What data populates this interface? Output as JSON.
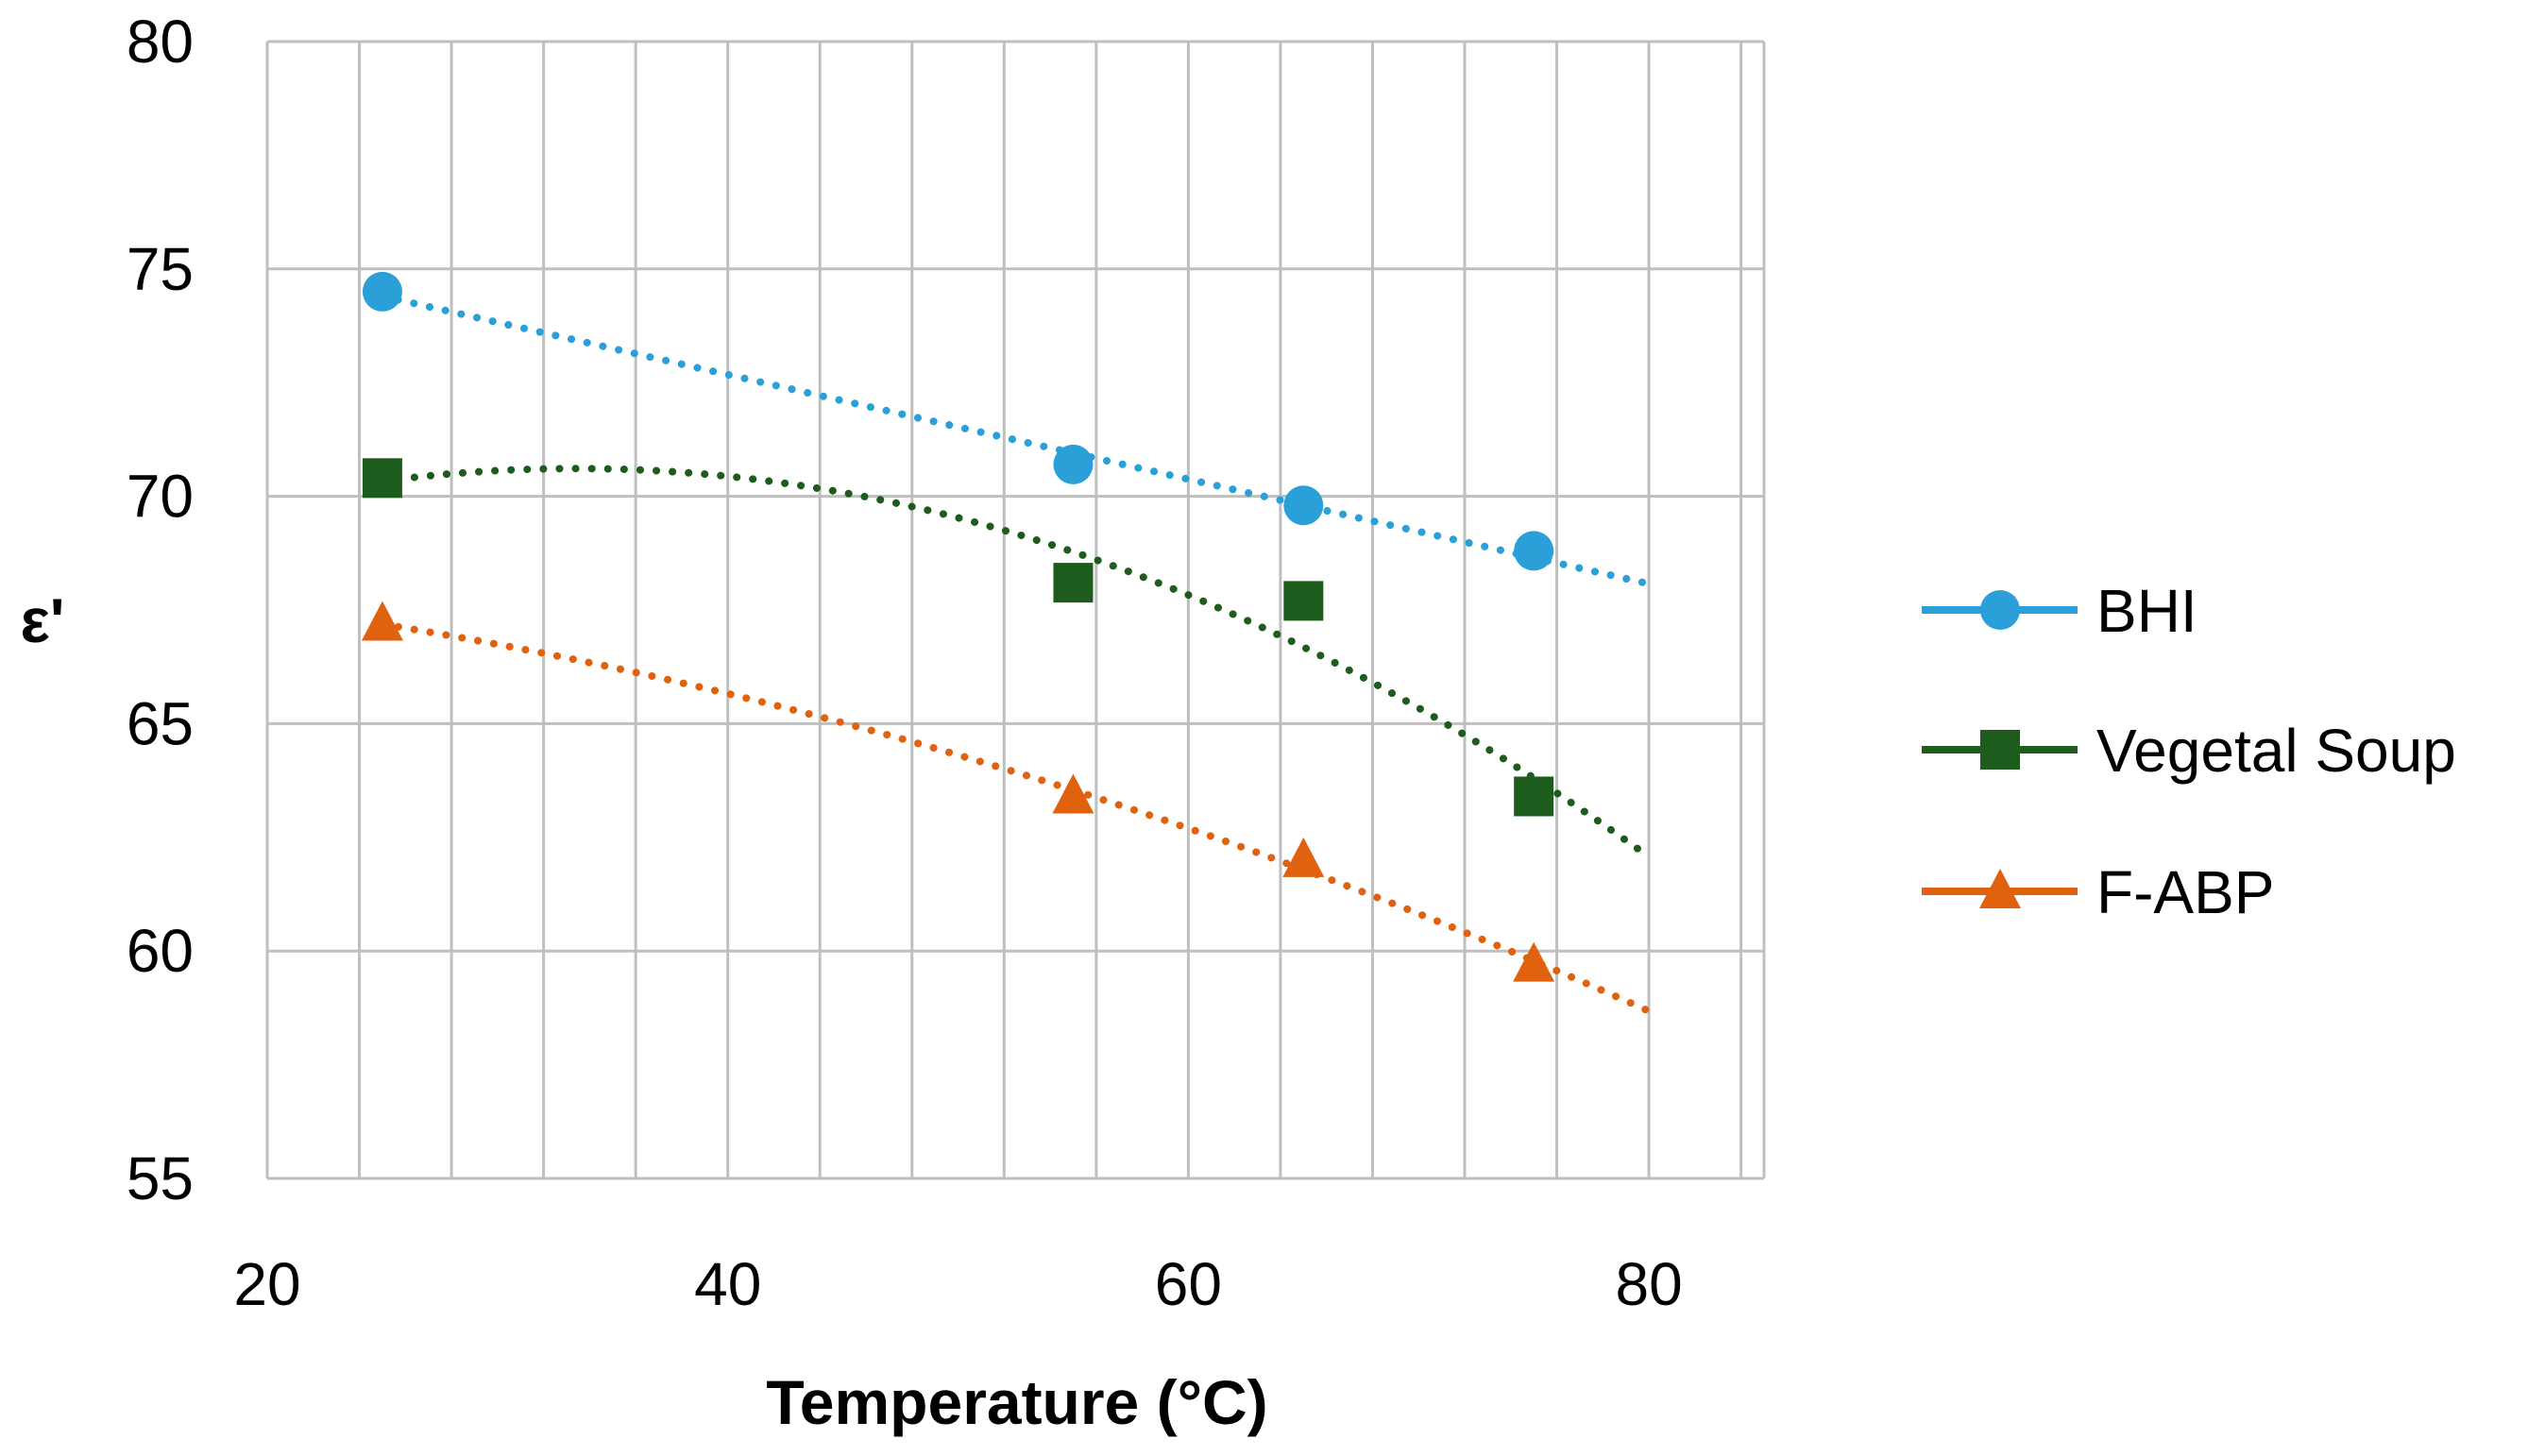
{
  "chart_data": {
    "type": "scatter",
    "title": "",
    "xlabel": "Temperature (°C)",
    "ylabel": "ε'",
    "xlim": [
      20,
      85
    ],
    "ylim": [
      55,
      80
    ],
    "x_tick_values": [
      20,
      40,
      60,
      80
    ],
    "x_tick_labels": [
      "20",
      "40",
      "60",
      "80"
    ],
    "x_grid_step": 4,
    "y_tick_values": [
      55,
      60,
      65,
      70,
      75,
      80
    ],
    "y_tick_labels": [
      "55",
      "60",
      "65",
      "70",
      "75",
      "80"
    ],
    "grid": true,
    "legend_position": "right",
    "series": [
      {
        "name": "BHI",
        "color": "#2A9FD8",
        "marker": "circle",
        "x": [
          25,
          55,
          65,
          75
        ],
        "y": [
          74.5,
          70.7,
          69.8,
          68.8
        ],
        "trendline": {
          "type": "linear",
          "x_start": 25,
          "x_end": 80
        }
      },
      {
        "name": "Vegetal Soup",
        "color": "#1E5C1E",
        "marker": "square",
        "x": [
          25,
          55,
          65,
          75
        ],
        "y": [
          70.4,
          68.1,
          67.7,
          63.4
        ],
        "trendline": {
          "type": "polynomial",
          "x_start": 25,
          "x_end": 80
        }
      },
      {
        "name": "F-ABP",
        "color": "#E0620E",
        "marker": "triangle",
        "x": [
          25,
          55,
          65,
          75
        ],
        "y": [
          67.2,
          63.4,
          62.0,
          59.7
        ],
        "trendline": {
          "type": "polynomial",
          "x_start": 25,
          "x_end": 80
        }
      }
    ]
  }
}
